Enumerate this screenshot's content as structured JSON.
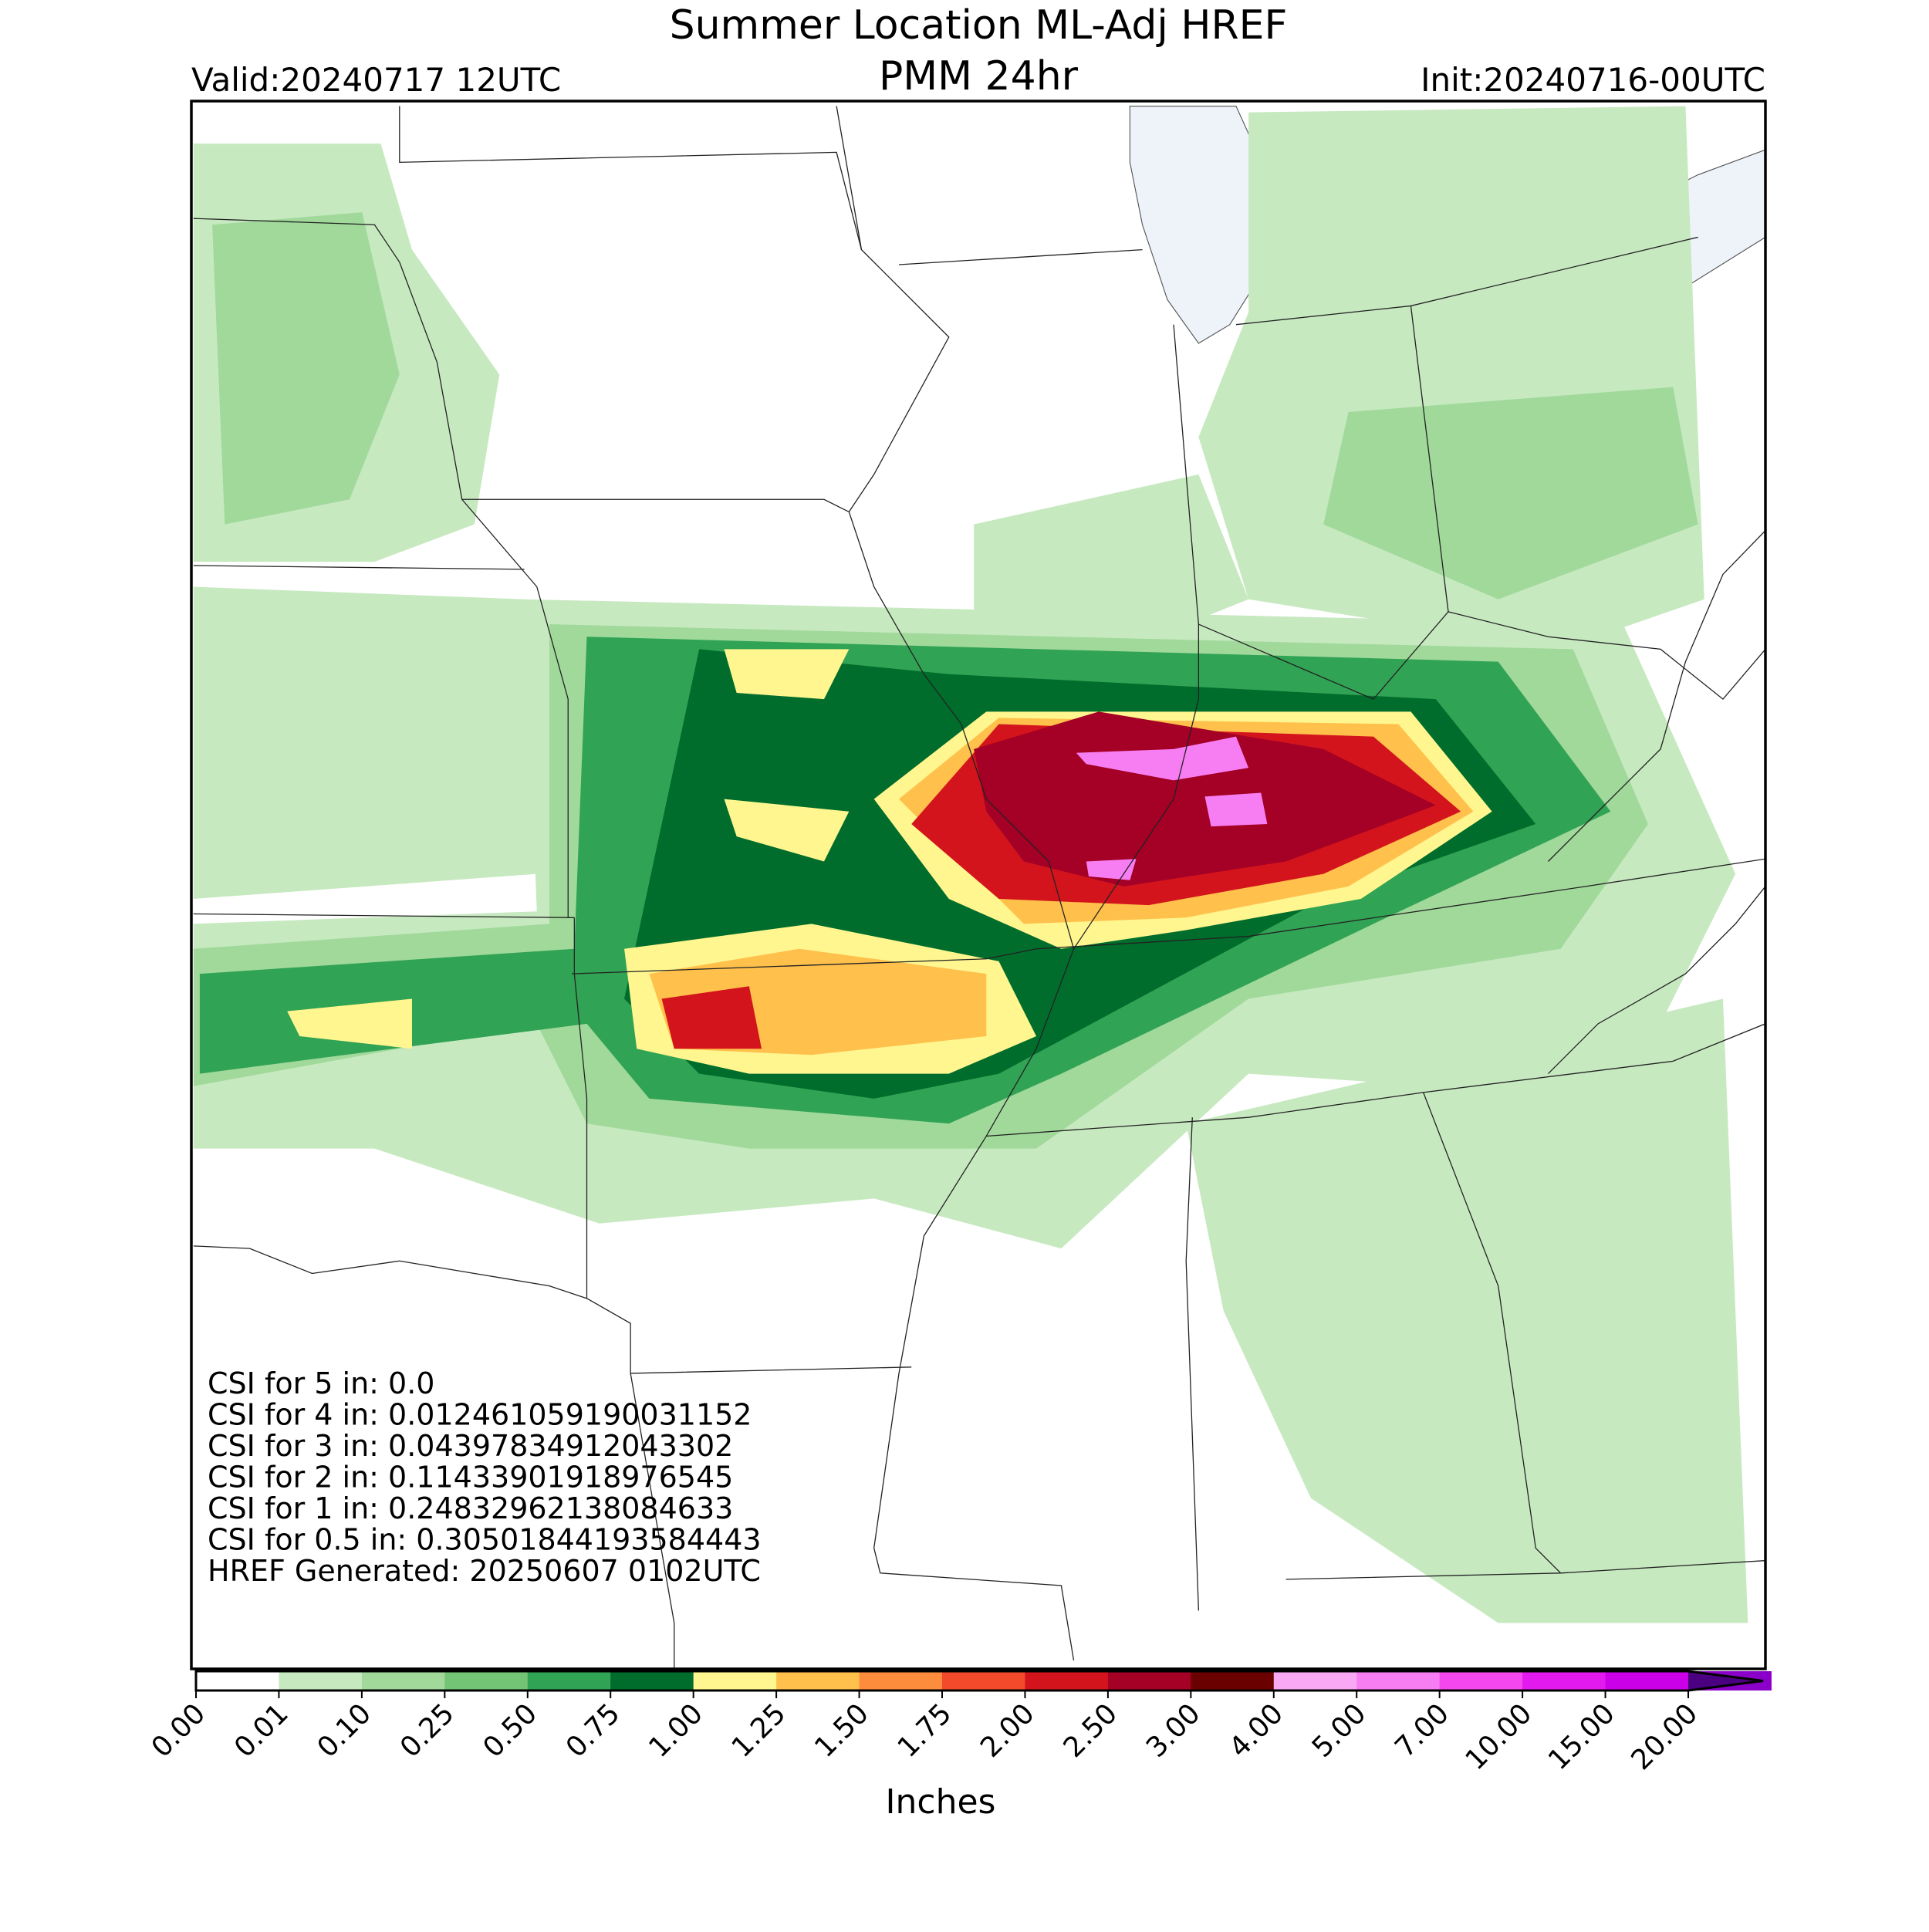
{
  "title": "Summer Location ML-Adj HREF",
  "subtitle": "PMM 24hr",
  "valid": "Valid:20240717 12UTC",
  "init": "Init:20240716-00UTC",
  "annotations": [
    "CSI for 5 in: 0.0",
    "CSI for 4 in: 0.012461059190031152",
    "CSI for 3 in: 0.04397834912043302",
    "CSI for 2 in: 0.11433901918976545",
    "CSI for 1 in: 0.24832962138084633",
    "CSI for 0.5 in: 0.30501844193584443",
    "HREF Generated: 20250607 0102UTC"
  ],
  "colorbar": {
    "label": "Inches",
    "ticks": [
      {
        "value": 0,
        "label": "0.00"
      },
      {
        "value": 0.01,
        "label": "0.01"
      },
      {
        "value": 0.1,
        "label": "0.10"
      },
      {
        "value": 0.25,
        "label": "0.25"
      },
      {
        "value": 0.5,
        "label": "0.50"
      },
      {
        "value": 0.75,
        "label": "0.75"
      },
      {
        "value": 1,
        "label": "1.00"
      },
      {
        "value": 1.25,
        "label": "1.25"
      },
      {
        "value": 1.5,
        "label": "1.50"
      },
      {
        "value": 1.75,
        "label": "1.75"
      },
      {
        "value": 2,
        "label": "2.00"
      },
      {
        "value": 2.5,
        "label": "2.50"
      },
      {
        "value": 3,
        "label": "3.00"
      },
      {
        "value": 4,
        "label": "4.00"
      },
      {
        "value": 5,
        "label": "5.00"
      },
      {
        "value": 7,
        "label": "7.00"
      },
      {
        "value": 10,
        "label": "10.00"
      },
      {
        "value": 15,
        "label": "15.00"
      },
      {
        "value": 20,
        "label": "20.00"
      }
    ],
    "colors": [
      "#ffffff",
      "#c7e9c0",
      "#a1d99b",
      "#74c476",
      "#31a354",
      "#006d2c",
      "#fff68f",
      "#ffc04c",
      "#fd8d3c",
      "#f24a2b",
      "#d3141c",
      "#a50026",
      "#6b0000",
      "#f9a8f4",
      "#f77ef2",
      "#f448ee",
      "#e21aee",
      "#cb00e8",
      "#8b00c8"
    ],
    "extend_color": "#4b0082"
  }
}
